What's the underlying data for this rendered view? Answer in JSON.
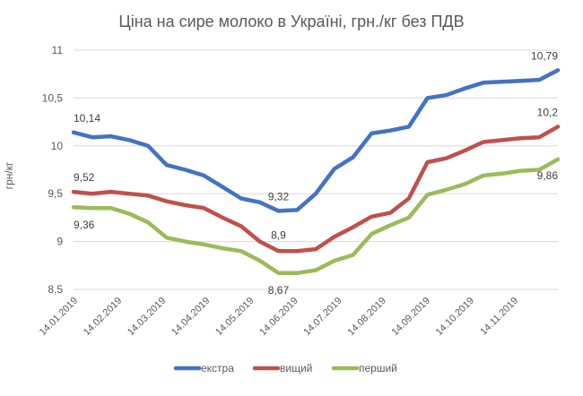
{
  "chart_data": {
    "type": "line",
    "title": "Ціна на сире молоко в Україні, грн./кг без ПДВ",
    "xlabel": "",
    "ylabel": "грн/кг",
    "ylim": [
      8.5,
      11
    ],
    "yticks": [
      "8,5",
      "9",
      "9,5",
      "10",
      "10,5",
      "11"
    ],
    "ytick_values": [
      8.5,
      9,
      9.5,
      10,
      10.5,
      11
    ],
    "x_tick_labels": [
      "14.01.2019",
      "14.02.2019",
      "14.03.2019",
      "14.04.2019",
      "14.05.2019",
      "14.06.2019",
      "14.07.2019",
      "14.08.2019",
      "14.09.2019",
      "14.10.2019",
      "14.11.2019"
    ],
    "grid": true,
    "legend_position": "bottom",
    "series": [
      {
        "name": "екстра",
        "color": "#4472C4",
        "values": [
          10.14,
          10.09,
          10.1,
          10.06,
          10.0,
          9.8,
          9.75,
          9.69,
          9.57,
          9.45,
          9.41,
          9.32,
          9.33,
          9.5,
          9.76,
          9.88,
          10.13,
          10.16,
          10.2,
          10.5,
          10.53,
          10.6,
          10.66,
          10.67,
          10.68,
          10.69,
          10.79
        ],
        "labels": [
          {
            "index": 0,
            "text": "10,14"
          },
          {
            "index": 11,
            "text": "9,32"
          },
          {
            "index": 26,
            "text": "10,79"
          }
        ]
      },
      {
        "name": "вищий",
        "color": "#C0504D",
        "values": [
          9.52,
          9.5,
          9.52,
          9.5,
          9.48,
          9.42,
          9.38,
          9.35,
          9.25,
          9.16,
          9.0,
          8.9,
          8.9,
          8.92,
          9.05,
          9.15,
          9.26,
          9.3,
          9.45,
          9.83,
          9.87,
          9.95,
          10.04,
          10.06,
          10.08,
          10.09,
          10.2
        ],
        "labels": [
          {
            "index": 0,
            "text": "9,52"
          },
          {
            "index": 11,
            "text": "8,9"
          },
          {
            "index": 26,
            "text": "10,2"
          }
        ]
      },
      {
        "name": "перший",
        "color": "#9BBB59",
        "values": [
          9.36,
          9.35,
          9.35,
          9.29,
          9.2,
          9.04,
          9.0,
          8.97,
          8.93,
          8.9,
          8.8,
          8.67,
          8.67,
          8.7,
          8.8,
          8.86,
          9.08,
          9.17,
          9.25,
          9.49,
          9.54,
          9.6,
          9.69,
          9.71,
          9.74,
          9.75,
          9.86
        ],
        "labels": [
          {
            "index": 0,
            "text": "9,36"
          },
          {
            "index": 11,
            "text": "8,67"
          },
          {
            "index": 26,
            "text": "9,86"
          }
        ]
      }
    ]
  }
}
